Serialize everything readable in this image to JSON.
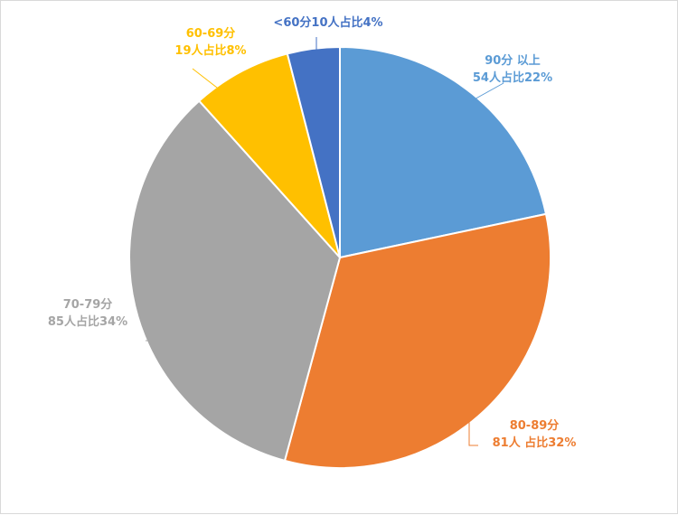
{
  "chart_data": {
    "type": "pie",
    "slices": [
      {
        "category": "90分 以上",
        "detail": "54人占比22%",
        "count": 54,
        "percent": 22,
        "color": "#5B9BD5"
      },
      {
        "category": "80-89分",
        "detail": "81人 占比32%",
        "count": 81,
        "percent": 32,
        "color": "#ED7D31"
      },
      {
        "category": "70-79分",
        "detail": "85人占比34%",
        "count": 85,
        "percent": 34,
        "color": "#A5A5A5"
      },
      {
        "category": "60-69分",
        "detail": "19人占比8%",
        "count": 19,
        "percent": 8,
        "color": "#FFC000"
      },
      {
        "category": "<60分10人占比4%",
        "detail": "",
        "count": 10,
        "percent": 4,
        "color": "#4472C4"
      }
    ],
    "legend": "none"
  }
}
